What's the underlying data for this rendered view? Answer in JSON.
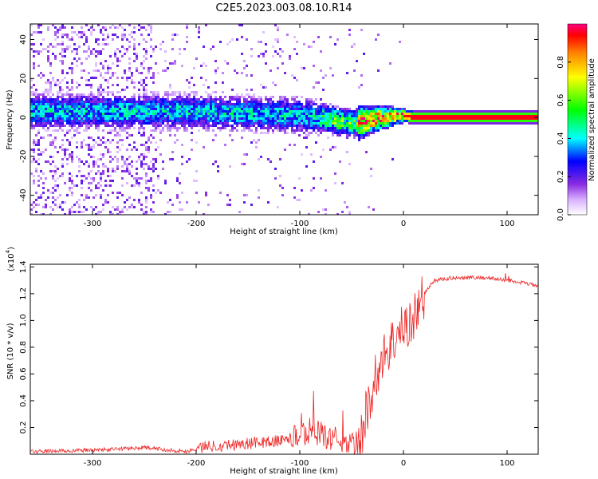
{
  "title": "C2E5.2023.003.08.10.R14",
  "colors": {
    "signal_red": "#ee2222",
    "axis": "#000000"
  },
  "chart_data": [
    {
      "type": "heatmap",
      "xlabel": "Height of straight line (km)",
      "ylabel": "Frequency (Hz)",
      "xlim": [
        -360,
        130
      ],
      "ylim": [
        -50,
        48
      ],
      "xticks": [
        -300,
        -200,
        -100,
        0,
        100
      ],
      "xtick_labels": [
        "-300",
        "-200",
        "-100",
        "0",
        "100"
      ],
      "yticks": [
        -40,
        -20,
        0,
        20,
        40
      ],
      "ytick_labels": [
        "-40",
        "-20",
        "0",
        "20",
        "40"
      ],
      "ridge": [
        [
          -360,
          3
        ],
        [
          -300,
          3
        ],
        [
          -200,
          3
        ],
        [
          -150,
          2
        ],
        [
          -100,
          1
        ],
        [
          -70,
          -1
        ],
        [
          -55,
          -3
        ],
        [
          -45,
          -3
        ],
        [
          -30,
          -1
        ],
        [
          -15,
          0
        ],
        [
          -5,
          1
        ],
        [
          0,
          1
        ],
        [
          10,
          0
        ],
        [
          130,
          0
        ]
      ],
      "colorbar": {
        "label": "Normalized spectral amplitude",
        "range": [
          0,
          1
        ],
        "ticks": [
          0.0,
          0.2,
          0.4,
          0.6,
          0.8
        ],
        "tick_labels": [
          "0.0",
          "0.2",
          "0.4",
          "0.6",
          "0.8"
        ]
      }
    },
    {
      "type": "line",
      "xlabel": "Height of straight line (km)",
      "ylabel": "SNR (10 * v/v)",
      "scale_label": "(x10",
      "scale_exp": "4",
      "scale_close": ")",
      "xlim": [
        -360,
        130
      ],
      "ylim": [
        0,
        1.42
      ],
      "xticks": [
        -300,
        -200,
        -100,
        0,
        100
      ],
      "xtick_labels": [
        "-300",
        "-200",
        "-100",
        "0",
        "100"
      ],
      "yticks": [
        0.2,
        0.4,
        0.6,
        0.8,
        1.0,
        1.2,
        1.4
      ],
      "ytick_labels": [
        "0.2",
        "0.4",
        "0.6",
        "0.8",
        "1.0",
        "1.2",
        "1.4"
      ],
      "series": [
        {
          "name": "SNR",
          "x": [
            -360,
            -300,
            -250,
            -210,
            -190,
            -150,
            -120,
            -100,
            -90,
            -70,
            -50,
            -42,
            -35,
            -25,
            -15,
            -5,
            10,
            20,
            30,
            50,
            80,
            100,
            130
          ],
          "values": [
            0.02,
            0.03,
            0.05,
            0.02,
            0.06,
            0.08,
            0.1,
            0.14,
            0.18,
            0.12,
            0.08,
            0.08,
            0.35,
            0.62,
            0.8,
            0.9,
            1.02,
            1.2,
            1.3,
            1.32,
            1.32,
            1.3,
            1.26
          ]
        }
      ]
    }
  ]
}
